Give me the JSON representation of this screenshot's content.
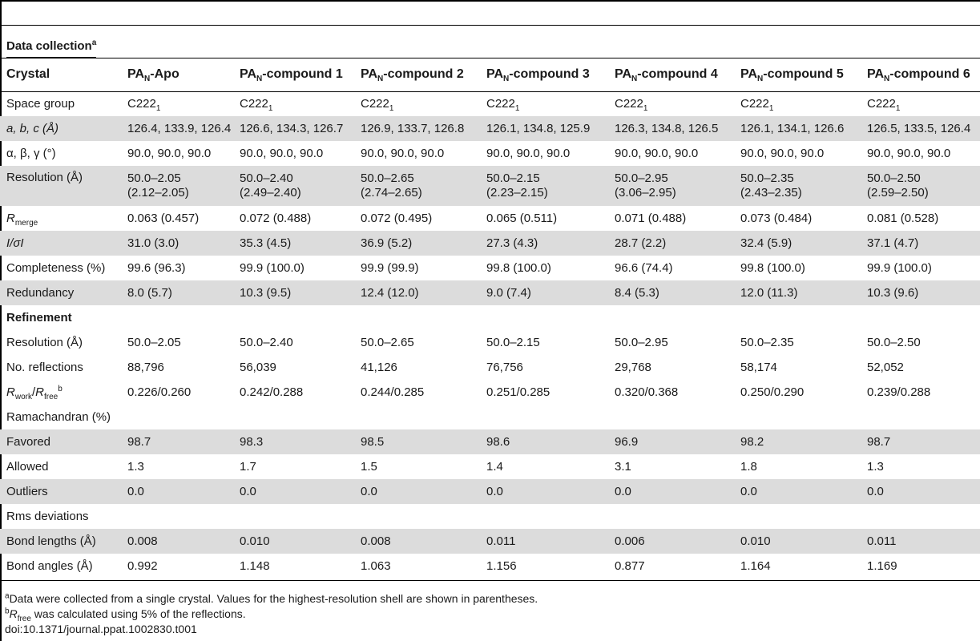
{
  "section_data_collection": "Data collection",
  "section_data_collection_mark": "a",
  "header": {
    "row_label": "Crystal",
    "columns": [
      {
        "pre": "PA",
        "sub": "N",
        "post": "-Apo"
      },
      {
        "pre": "PA",
        "sub": "N",
        "post": "-compound 1"
      },
      {
        "pre": "PA",
        "sub": "N",
        "post": "-compound 2"
      },
      {
        "pre": "PA",
        "sub": "N",
        "post": "-compound 3"
      },
      {
        "pre": "PA",
        "sub": "N",
        "post": "-compound 4"
      },
      {
        "pre": "PA",
        "sub": "N",
        "post": "-compound 5"
      },
      {
        "pre": "PA",
        "sub": "N",
        "post": "-compound 6"
      }
    ]
  },
  "labels": {
    "space_group": "Space group",
    "cell_abc": "a, b, c (Å)",
    "cell_angles": "α, β, γ (°)",
    "resolution": "Resolution (Å)",
    "rmerge_r": "R",
    "rmerge_sub": "merge",
    "i_sigma": "I/σI",
    "completeness": "Completeness (%)",
    "redundancy": "Redundancy",
    "refinement": "Refinement",
    "resolution_ref": "Resolution (Å)",
    "reflections": "No. reflections",
    "rwork_r": "R",
    "rwork_sub": "work",
    "rfree_r": "R",
    "rfree_sub": "free",
    "rwork_mark": "b",
    "ramachandran": "Ramachandran (%)",
    "favored": "Favored",
    "allowed": "Allowed",
    "outliers": "Outliers",
    "rms": "Rms deviations",
    "bond_lengths": "Bond lengths (Å)",
    "bond_angles": "Bond angles (Å)"
  },
  "space_group": [
    {
      "base": "C222",
      "sub": "1"
    },
    {
      "base": "C222",
      "sub": "1"
    },
    {
      "base": "C222",
      "sub": "1"
    },
    {
      "base": "C222",
      "sub": "1"
    },
    {
      "base": "C222",
      "sub": "1"
    },
    {
      "base": "C222",
      "sub": "1"
    },
    {
      "base": "C222",
      "sub": "1"
    }
  ],
  "cell_abc": [
    "126.4, 133.9, 126.4",
    "126.6, 134.3, 126.7",
    "126.9, 133.7, 126.8",
    "126.1, 134.8, 125.9",
    "126.3, 134.8, 126.5",
    "126.1, 134.1, 126.6",
    "126.5, 133.5, 126.4"
  ],
  "cell_angles": [
    "90.0, 90.0, 90.0",
    "90.0, 90.0, 90.0",
    "90.0, 90.0, 90.0",
    "90.0, 90.0, 90.0",
    "90.0, 90.0, 90.0",
    "90.0, 90.0, 90.0",
    "90.0, 90.0, 90.0"
  ],
  "resolution": [
    {
      "range": "50.0–2.05",
      "shell": "(2.12–2.05)"
    },
    {
      "range": "50.0–2.40",
      "shell": "(2.49–2.40)"
    },
    {
      "range": "50.0–2.65",
      "shell": "(2.74–2.65)"
    },
    {
      "range": "50.0–2.15",
      "shell": "(2.23–2.15)"
    },
    {
      "range": "50.0–2.95",
      "shell": "(3.06–2.95)"
    },
    {
      "range": "50.0–2.35",
      "shell": "(2.43–2.35)"
    },
    {
      "range": "50.0–2.50",
      "shell": "(2.59–2.50)"
    }
  ],
  "rmerge": [
    "0.063 (0.457)",
    "0.072 (0.488)",
    "0.072 (0.495)",
    "0.065 (0.511)",
    "0.071 (0.488)",
    "0.073 (0.484)",
    "0.081 (0.528)"
  ],
  "i_sigma": [
    "31.0 (3.0)",
    "35.3 (4.5)",
    "36.9 (5.2)",
    "27.3 (4.3)",
    "28.7 (2.2)",
    "32.4 (5.9)",
    "37.1 (4.7)"
  ],
  "completeness": [
    "99.6 (96.3)",
    "99.9 (100.0)",
    "99.9 (99.9)",
    "99.8 (100.0)",
    "96.6 (74.4)",
    "99.8 (100.0)",
    "99.9 (100.0)"
  ],
  "redundancy": [
    "8.0 (5.7)",
    "10.3 (9.5)",
    "12.4 (12.0)",
    "9.0 (7.4)",
    "8.4 (5.3)",
    "12.0 (11.3)",
    "10.3 (9.6)"
  ],
  "resolution_ref": [
    "50.0–2.05",
    "50.0–2.40",
    "50.0–2.65",
    "50.0–2.15",
    "50.0–2.95",
    "50.0–2.35",
    "50.0–2.50"
  ],
  "reflections": [
    "88,796",
    "56,039",
    "41,126",
    "76,756",
    "29,768",
    "58,174",
    "52,052"
  ],
  "rwork_rfree": [
    "0.226/0.260",
    "0.242/0.288",
    "0.244/0.285",
    "0.251/0.285",
    "0.320/0.368",
    "0.250/0.290",
    "0.239/0.288"
  ],
  "favored": [
    "98.7",
    "98.3",
    "98.5",
    "98.6",
    "96.9",
    "98.2",
    "98.7"
  ],
  "allowed": [
    "1.3",
    "1.7",
    "1.5",
    "1.4",
    "3.1",
    "1.8",
    "1.3"
  ],
  "outliers": [
    "0.0",
    "0.0",
    "0.0",
    "0.0",
    "0.0",
    "0.0",
    "0.0"
  ],
  "bond_lengths": [
    "0.008",
    "0.010",
    "0.008",
    "0.011",
    "0.006",
    "0.010",
    "0.011"
  ],
  "bond_angles": [
    "0.992",
    "1.148",
    "1.063",
    "1.156",
    "0.877",
    "1.164",
    "1.169"
  ],
  "footnotes": {
    "a_mark": "a",
    "a_text": "Data were collected from a single crystal. Values for the highest-resolution shell are shown in parentheses.",
    "b_mark": "b",
    "b_r": "R",
    "b_sub": "free",
    "b_text": " was calculated using 5% of the reflections.",
    "doi": "doi:10.1371/journal.ppat.1002830.t001"
  }
}
